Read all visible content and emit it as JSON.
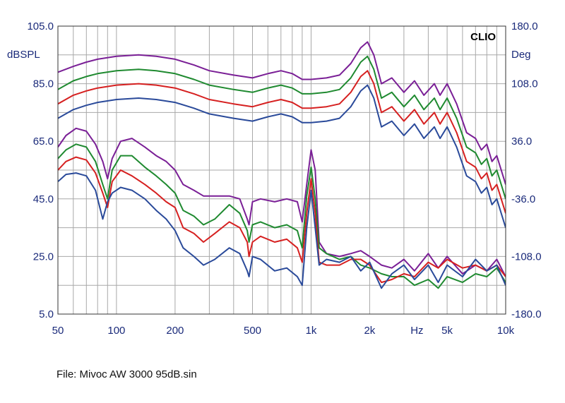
{
  "chart_data": {
    "type": "line",
    "brand": "CLIO",
    "y_left_unit": "dBSPL",
    "y_right_unit": "Deg",
    "x_unit_label": "Hz",
    "x_scale": "log",
    "xlim": [
      50,
      10000
    ],
    "ylim_left": [
      5,
      105
    ],
    "ylim_right": [
      -180,
      180
    ],
    "x_ticks": [
      {
        "value": 50,
        "label": "50"
      },
      {
        "value": 100,
        "label": "100"
      },
      {
        "value": 200,
        "label": "200"
      },
      {
        "value": 500,
        "label": "500"
      },
      {
        "value": 1000,
        "label": "1k"
      },
      {
        "value": 2000,
        "label": "2k"
      },
      {
        "value": 5000,
        "label": "5k"
      },
      {
        "value": 10000,
        "label": "10k"
      }
    ],
    "x_unit_at": 3500,
    "y_left_ticks": [
      "105.0",
      "85.0",
      "65.0",
      "45.0",
      "25.0",
      "5.0"
    ],
    "y_right_ticks": [
      "180.0",
      "108.0",
      "36.0",
      "-36.0",
      "-108.0",
      "-180.0"
    ],
    "grid": true,
    "colors": {
      "purple": "#7a1f96",
      "green": "#1f8a30",
      "red": "#d62020",
      "blue": "#2a4a9a"
    },
    "series": [
      {
        "color": "purple",
        "x": [
          50,
          60,
          70,
          80,
          100,
          130,
          160,
          200,
          250,
          300,
          400,
          500,
          600,
          700,
          800,
          900,
          1000,
          1200,
          1400,
          1600,
          1800,
          1950,
          2100,
          2300,
          2600,
          3000,
          3400,
          3800,
          4300,
          4600,
          5000,
          5600,
          6300,
          7000,
          7500,
          8000,
          8500,
          9000,
          10000
        ],
        "y": [
          89,
          91,
          92.5,
          93.5,
          94.5,
          95,
          94.5,
          93.5,
          91.5,
          89.5,
          88,
          87,
          88.5,
          89.5,
          88.5,
          86.5,
          86.5,
          87,
          88,
          92,
          97.5,
          99.5,
          95,
          85,
          87,
          82,
          86,
          81,
          85,
          81,
          85,
          78,
          68,
          66,
          62,
          64,
          58,
          60,
          50
        ]
      },
      {
        "color": "green",
        "x": [
          50,
          60,
          70,
          80,
          100,
          130,
          160,
          200,
          250,
          300,
          400,
          500,
          600,
          700,
          800,
          900,
          1000,
          1200,
          1400,
          1600,
          1800,
          1950,
          2100,
          2300,
          2600,
          3000,
          3400,
          3800,
          4300,
          4600,
          5000,
          5600,
          6300,
          7000,
          7500,
          8000,
          8500,
          9000,
          10000
        ],
        "y": [
          83,
          86,
          87.5,
          88.5,
          89.5,
          90,
          89.5,
          88.5,
          86.5,
          84.5,
          83,
          82,
          83.5,
          84.5,
          83.5,
          81.5,
          81.5,
          82,
          83,
          87,
          92.5,
          94.5,
          90,
          80,
          82,
          77,
          81,
          76,
          80,
          76,
          80,
          73,
          63,
          61,
          57,
          59,
          53,
          55,
          45
        ]
      },
      {
        "color": "red",
        "x": [
          50,
          60,
          70,
          80,
          100,
          130,
          160,
          200,
          250,
          300,
          400,
          500,
          600,
          700,
          800,
          900,
          1000,
          1200,
          1400,
          1600,
          1800,
          1950,
          2100,
          2300,
          2600,
          3000,
          3400,
          3800,
          4300,
          4600,
          5000,
          5600,
          6300,
          7000,
          7500,
          8000,
          8500,
          9000,
          10000
        ],
        "y": [
          78,
          81,
          82.5,
          83.5,
          84.5,
          85,
          84.5,
          83.5,
          81.5,
          79.5,
          78,
          77,
          78.5,
          79.5,
          78.5,
          76.5,
          76.5,
          77,
          78,
          82,
          87.5,
          89.5,
          85,
          75,
          77,
          72,
          76,
          71,
          75,
          71,
          75,
          68,
          58,
          56,
          52,
          54,
          48,
          50,
          40
        ]
      },
      {
        "color": "blue",
        "x": [
          50,
          60,
          70,
          80,
          100,
          130,
          160,
          200,
          250,
          300,
          400,
          500,
          600,
          700,
          800,
          900,
          1000,
          1200,
          1400,
          1600,
          1800,
          1950,
          2100,
          2300,
          2600,
          3000,
          3400,
          3800,
          4300,
          4600,
          5000,
          5600,
          6300,
          7000,
          7500,
          8000,
          8500,
          9000,
          10000
        ],
        "y": [
          73,
          76,
          77.5,
          78.5,
          79.5,
          80,
          79.5,
          78.5,
          76.5,
          74.5,
          73,
          72,
          73.5,
          74.5,
          73.5,
          71.5,
          71.5,
          72,
          73,
          77,
          82.5,
          84.5,
          80,
          70,
          72,
          67,
          71,
          66,
          70,
          66,
          70,
          63,
          53,
          51,
          47,
          49,
          43,
          45,
          35
        ]
      },
      {
        "color": "purple",
        "x": [
          50,
          55,
          62,
          70,
          78,
          85,
          90,
          95,
          105,
          120,
          140,
          160,
          180,
          200,
          220,
          250,
          280,
          320,
          380,
          430,
          470,
          480,
          500,
          550,
          650,
          750,
          850,
          900,
          950,
          1000,
          1050,
          1100,
          1200,
          1400,
          1600,
          1800,
          2000,
          2300,
          2600,
          3000,
          3400,
          4000,
          4500,
          5000,
          6000,
          7000,
          8000,
          9000,
          10000
        ],
        "y": [
          63,
          67,
          69.5,
          68.5,
          64,
          58,
          52,
          59,
          65,
          66,
          63,
          60,
          58,
          55,
          50,
          48,
          46,
          46,
          46,
          45,
          38,
          36,
          44,
          45,
          44,
          45,
          44,
          37,
          50,
          62,
          55,
          30,
          26,
          25,
          26,
          27,
          25,
          22,
          21,
          24,
          20,
          26,
          21,
          25,
          19,
          22,
          20,
          24,
          18
        ]
      },
      {
        "color": "green",
        "x": [
          50,
          55,
          62,
          70,
          78,
          85,
          90,
          95,
          105,
          120,
          140,
          160,
          180,
          200,
          220,
          250,
          280,
          320,
          380,
          430,
          470,
          480,
          500,
          550,
          650,
          750,
          850,
          900,
          950,
          1000,
          1050,
          1100,
          1200,
          1400,
          1600,
          1800,
          2000,
          2300,
          2600,
          3000,
          3400,
          4000,
          4500,
          5000,
          6000,
          7000,
          8000,
          9000,
          10000
        ],
        "y": [
          59,
          62,
          64,
          63,
          58,
          50,
          45,
          55,
          60,
          60,
          56,
          53,
          50,
          47,
          41,
          39,
          36,
          38,
          43,
          40,
          34,
          30,
          36,
          37,
          35,
          36,
          34,
          28,
          46,
          56,
          45,
          28,
          26,
          24,
          25,
          22,
          21,
          19,
          18,
          18,
          15,
          17,
          14,
          18,
          16,
          19,
          18,
          21,
          16
        ]
      },
      {
        "color": "red",
        "x": [
          50,
          55,
          62,
          70,
          78,
          85,
          90,
          95,
          105,
          120,
          140,
          160,
          180,
          200,
          220,
          250,
          280,
          320,
          380,
          430,
          470,
          480,
          500,
          550,
          650,
          750,
          850,
          900,
          950,
          1000,
          1050,
          1100,
          1200,
          1400,
          1600,
          1800,
          2000,
          2300,
          2600,
          3000,
          3400,
          4000,
          4500,
          5000,
          6000,
          7000,
          8000,
          9000,
          10000
        ],
        "y": [
          55,
          58,
          59.5,
          58.5,
          54,
          47,
          42,
          51,
          55,
          53,
          50,
          47,
          44,
          42,
          35,
          33,
          30,
          33,
          37,
          35,
          30,
          25,
          30,
          32,
          30,
          31,
          28,
          23,
          40,
          52,
          40,
          23,
          22,
          22,
          24,
          24,
          22,
          16,
          17,
          19,
          18,
          23,
          21,
          24,
          21,
          22,
          20,
          22,
          18
        ]
      },
      {
        "color": "blue",
        "x": [
          50,
          55,
          62,
          70,
          78,
          85,
          90,
          95,
          105,
          120,
          140,
          160,
          180,
          200,
          220,
          250,
          280,
          320,
          380,
          430,
          470,
          480,
          500,
          550,
          650,
          750,
          850,
          900,
          950,
          1000,
          1050,
          1100,
          1200,
          1400,
          1600,
          1800,
          2000,
          2300,
          2600,
          3000,
          3400,
          4000,
          4500,
          5000,
          6000,
          7000,
          8000,
          9000,
          10000
        ],
        "y": [
          51,
          53.5,
          54,
          53,
          48,
          38,
          44,
          47,
          49,
          48,
          45,
          41,
          38,
          34,
          28,
          25,
          22,
          24,
          28,
          26,
          20,
          18,
          25,
          24,
          20,
          21,
          18,
          15,
          35,
          48,
          35,
          22,
          24,
          23,
          25,
          20,
          23,
          14,
          19,
          22,
          17,
          22,
          16,
          22,
          18,
          24,
          20,
          22,
          15
        ]
      }
    ]
  },
  "footer": {
    "file_label": "File: Mivoc AW 3000 95dB.sin"
  }
}
